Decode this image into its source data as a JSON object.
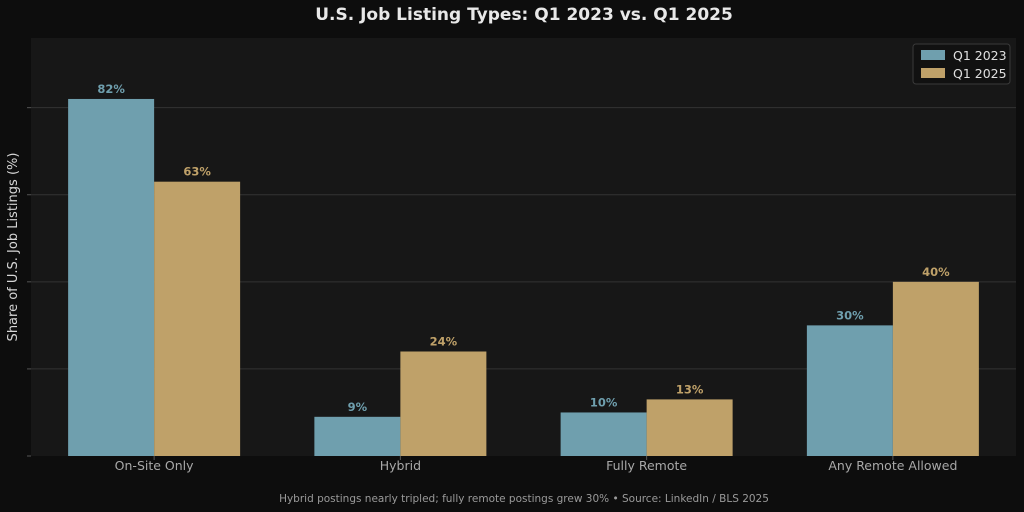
{
  "chart_data": {
    "type": "bar",
    "title": "U.S. Job Listing Types: Q1 2023 vs. Q1 2025",
    "xlabel": "",
    "ylabel": "Share of U.S. Job Listings (%)",
    "categories": [
      "On-Site Only",
      "Hybrid",
      "Fully Remote",
      "Any Remote Allowed"
    ],
    "series": [
      {
        "name": "Q1 2023",
        "values": [
          82,
          9,
          10,
          30
        ],
        "labels": [
          "82%",
          "9%",
          "10%",
          "30%"
        ],
        "color": "#6f9fae"
      },
      {
        "name": "Q1 2025",
        "values": [
          63,
          24,
          13,
          40
        ],
        "labels": [
          "63%",
          "24%",
          "13%",
          "40%"
        ],
        "color": "#bfa169"
      }
    ],
    "ylim": [
      0,
      96
    ],
    "grid": true,
    "legend_position": "top-right",
    "caption": "Hybrid postings nearly tripled; fully remote postings grew 30% • Source: LinkedIn / BLS 2025",
    "colors": {
      "page_background": "#0d0d0d",
      "plot_background": "#171717",
      "grid": "#333333"
    }
  }
}
